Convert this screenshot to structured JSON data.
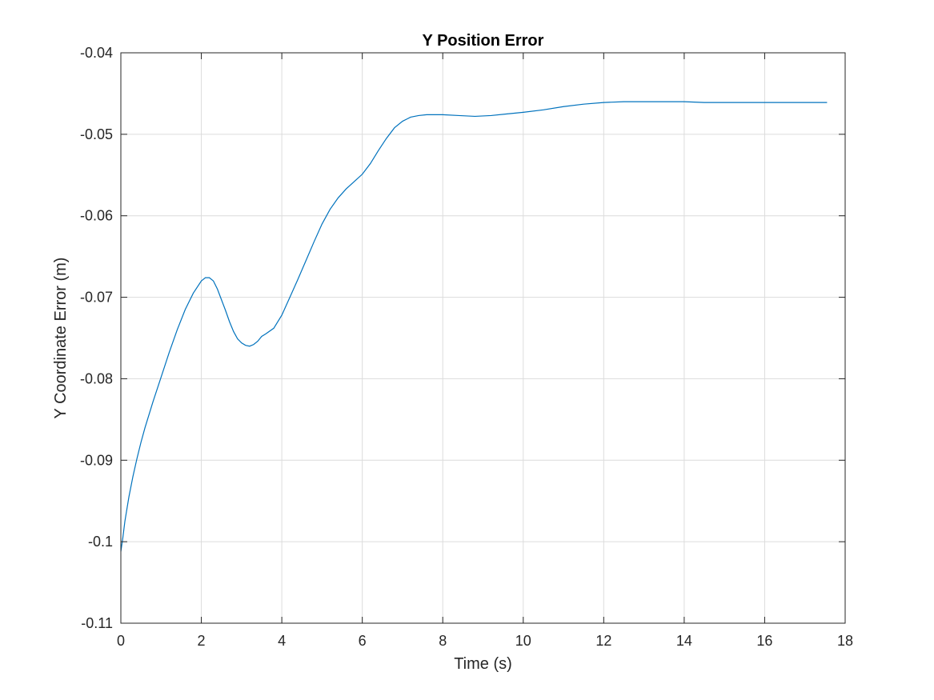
{
  "chart_data": {
    "type": "line",
    "title": "Y Position Error",
    "xlabel": "Time (s)",
    "ylabel": "Y Coordinate Error (m)",
    "xlim": [
      0,
      18
    ],
    "ylim": [
      -0.11,
      -0.04
    ],
    "xticks": [
      0,
      2,
      4,
      6,
      8,
      10,
      12,
      14,
      16,
      18
    ],
    "yticks": [
      -0.11,
      -0.1,
      -0.09,
      -0.08,
      -0.07,
      -0.06,
      -0.05,
      -0.04
    ],
    "xtick_labels": [
      "0",
      "2",
      "4",
      "6",
      "8",
      "10",
      "12",
      "14",
      "16",
      "18"
    ],
    "ytick_labels": [
      "-0.11",
      "-0.1",
      "-0.09",
      "-0.08",
      "-0.07",
      "-0.06",
      "-0.05",
      "-0.04"
    ],
    "grid": true,
    "series": [
      {
        "color": "#0072BD",
        "x": [
          0.0,
          0.05,
          0.1,
          0.2,
          0.3,
          0.4,
          0.5,
          0.6,
          0.8,
          1.0,
          1.2,
          1.4,
          1.6,
          1.8,
          2.0,
          2.1,
          2.2,
          2.3,
          2.4,
          2.5,
          2.6,
          2.7,
          2.8,
          2.9,
          3.0,
          3.1,
          3.2,
          3.3,
          3.4,
          3.5,
          3.6,
          3.8,
          4.0,
          4.2,
          4.4,
          4.6,
          4.8,
          5.0,
          5.2,
          5.4,
          5.6,
          5.8,
          6.0,
          6.2,
          6.4,
          6.6,
          6.8,
          7.0,
          7.2,
          7.4,
          7.6,
          7.8,
          8.0,
          8.4,
          8.8,
          9.2,
          9.6,
          10.0,
          10.5,
          11.0,
          11.5,
          12.0,
          12.5,
          13.0,
          13.5,
          14.0,
          14.5,
          15.0,
          15.5,
          16.0,
          16.5,
          17.0,
          17.55
        ],
        "y": [
          -0.1012,
          -0.0995,
          -0.0975,
          -0.0945,
          -0.092,
          -0.0898,
          -0.0878,
          -0.086,
          -0.0828,
          -0.0798,
          -0.0768,
          -0.074,
          -0.0715,
          -0.0695,
          -0.068,
          -0.0676,
          -0.0676,
          -0.068,
          -0.069,
          -0.0703,
          -0.0716,
          -0.073,
          -0.0742,
          -0.0751,
          -0.0756,
          -0.0759,
          -0.076,
          -0.0758,
          -0.0754,
          -0.0748,
          -0.0745,
          -0.0738,
          -0.0722,
          -0.07,
          -0.0678,
          -0.0655,
          -0.0632,
          -0.061,
          -0.0592,
          -0.0578,
          -0.0567,
          -0.0558,
          -0.0549,
          -0.0536,
          -0.052,
          -0.0505,
          -0.0492,
          -0.0484,
          -0.0479,
          -0.0477,
          -0.0476,
          -0.0476,
          -0.0476,
          -0.0477,
          -0.0478,
          -0.0477,
          -0.0475,
          -0.0473,
          -0.047,
          -0.0466,
          -0.0463,
          -0.0461,
          -0.046,
          -0.046,
          -0.046,
          -0.046,
          -0.0461,
          -0.0461,
          -0.0461,
          -0.0461,
          -0.0461,
          -0.0461,
          -0.0461
        ]
      }
    ]
  }
}
